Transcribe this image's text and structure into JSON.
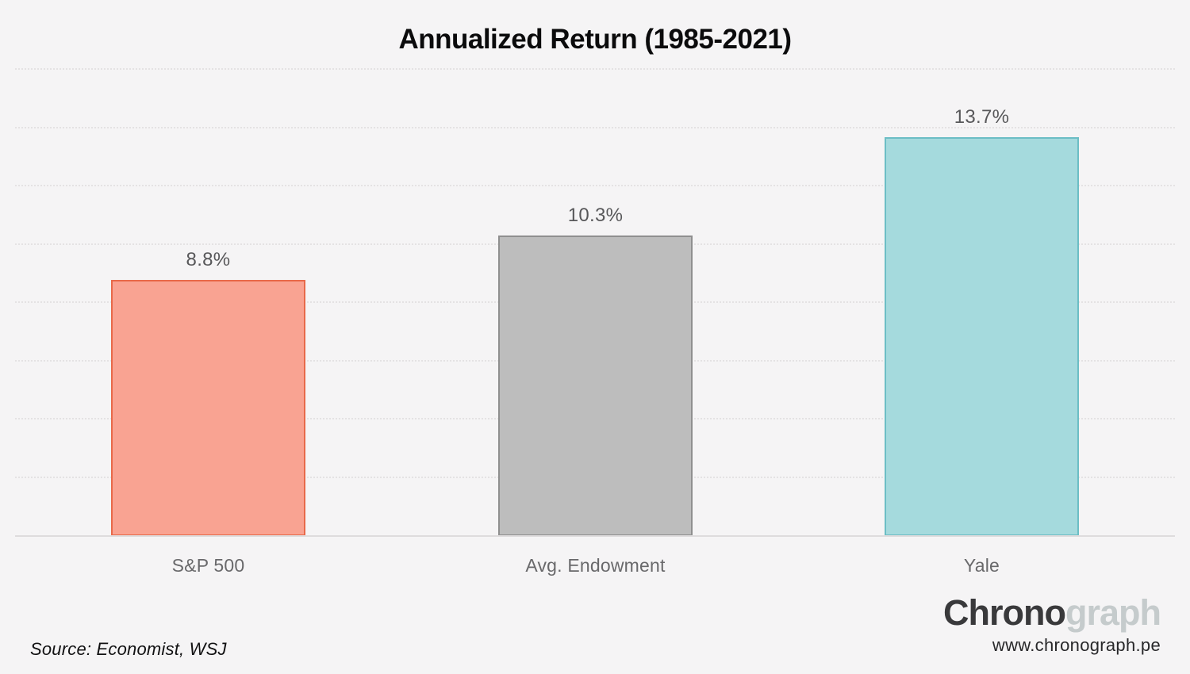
{
  "title": "Annualized Return (1985-2021)",
  "source_note": "Source: Economist, WSJ",
  "branding": {
    "logo_dark": "Chrono",
    "logo_light": "graph",
    "website": "www.chronograph.pe"
  },
  "colors": {
    "background": "#f5f4f5",
    "gridline": "#e4e2e3",
    "baseline": "#dedcdd",
    "title_text": "#0b0b0c",
    "value_label_text": "#58585a",
    "category_label_text": "#69696b",
    "logo_dark": "#39393b",
    "logo_light": "#c5cbcc"
  },
  "chart_data": {
    "type": "bar",
    "title": "Annualized Return (1985-2021)",
    "categories": [
      "S&P 500",
      "Avg. Endowment",
      "Yale"
    ],
    "values": [
      8.8,
      10.3,
      13.7
    ],
    "value_labels": [
      "8.8%",
      "10.3%",
      "13.7%"
    ],
    "xlabel": "",
    "ylabel": "",
    "ylim": [
      0,
      16
    ],
    "gridline_values": [
      2,
      4,
      6,
      8,
      10,
      12,
      14,
      16
    ],
    "grid": "dotted-horizontal",
    "legend": "none",
    "bar_colors": [
      {
        "fill": "#f9a392",
        "border": "#e8694a"
      },
      {
        "fill": "#bdbdbd",
        "border": "#8f8f8f"
      },
      {
        "fill": "#a5dadd",
        "border": "#6cbec5"
      }
    ]
  }
}
